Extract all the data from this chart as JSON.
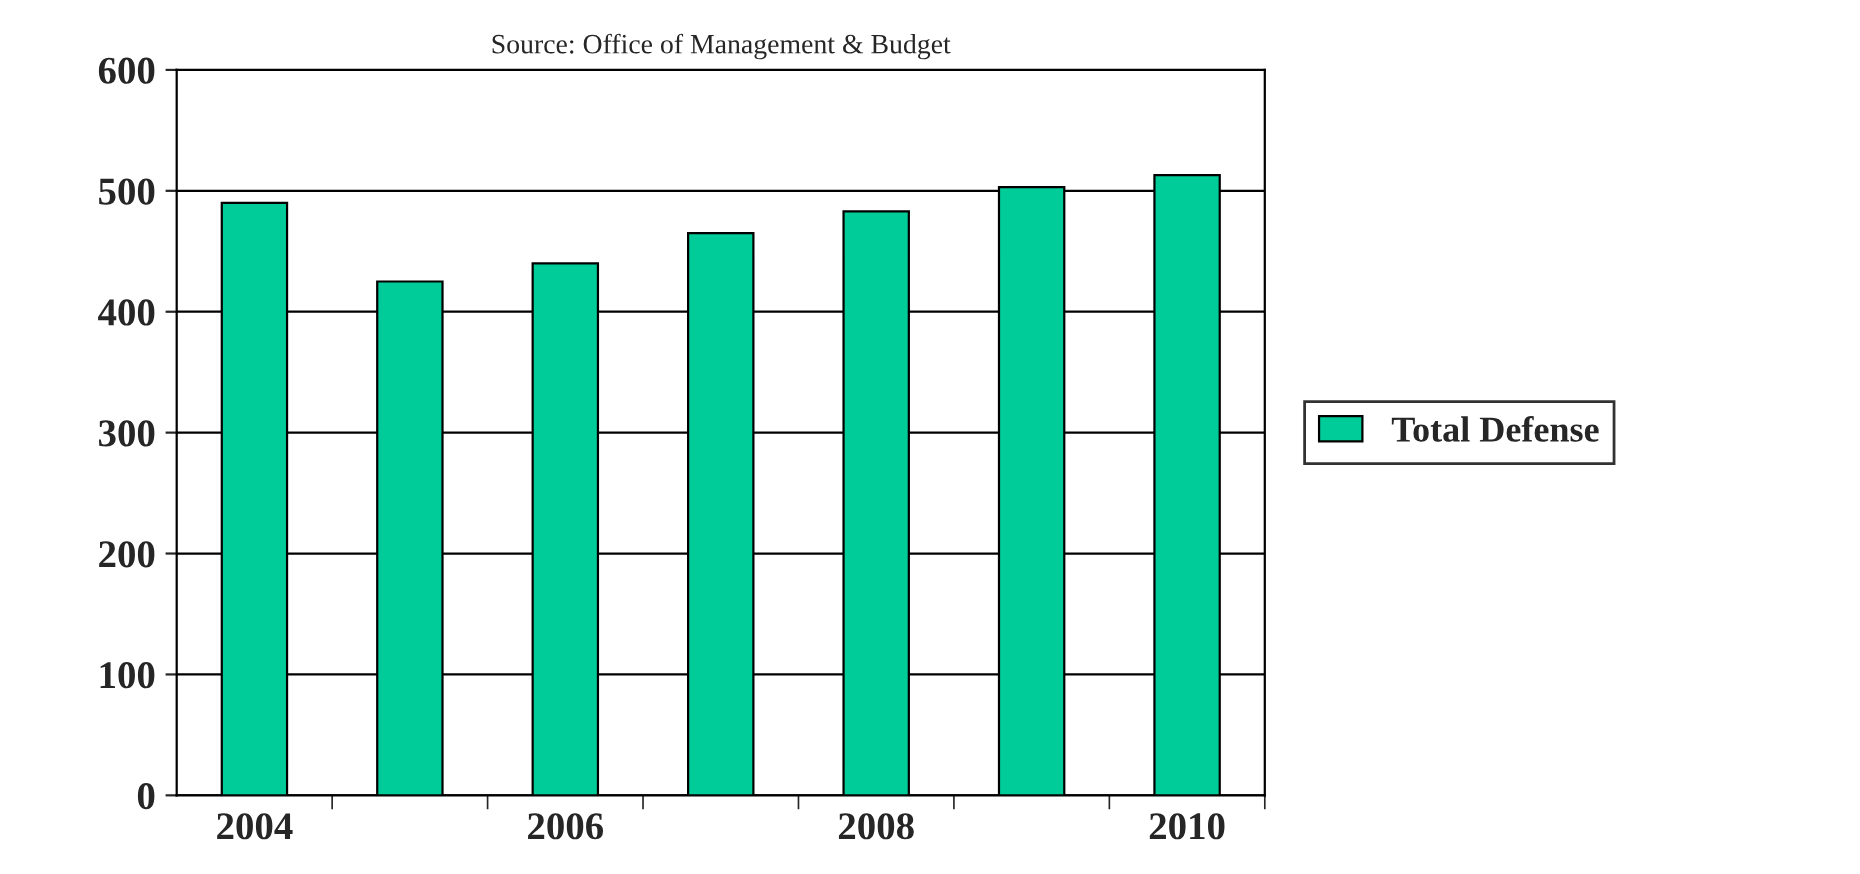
{
  "chart_data": {
    "type": "bar",
    "title": "Source: Office of Management & Budget",
    "categories": [
      "2004",
      null,
      "2006",
      null,
      "2008",
      null,
      "2010"
    ],
    "series": [
      {
        "name": "Total Defense",
        "color": "#00cc99",
        "values": [
          490,
          425,
          440,
          465,
          483,
          503,
          513
        ]
      }
    ],
    "ylim": [
      0,
      600
    ],
    "yticks": [
      0,
      100,
      200,
      300,
      400,
      500,
      600
    ],
    "grid": "y",
    "legend": "right"
  }
}
